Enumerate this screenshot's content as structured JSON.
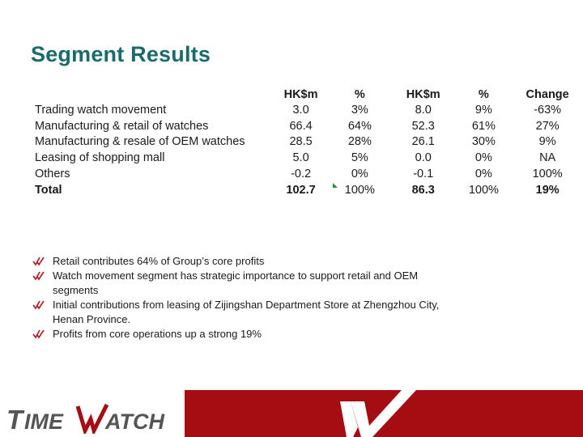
{
  "title": "Segment Results",
  "table": {
    "headers": [
      "",
      "HK$m",
      "%",
      "HK$m",
      "%",
      "Change"
    ],
    "rows": [
      {
        "label": "Trading watch movement",
        "v1": "3.0",
        "p1": "3%",
        "v2": "8.0",
        "p2": "9%",
        "change": "-63%"
      },
      {
        "label": "Manufacturing & retail of watches",
        "v1": "66.4",
        "p1": "64%",
        "v2": "52.3",
        "p2": "61%",
        "change": "27%"
      },
      {
        "label": "Manufacturing & resale of OEM watches",
        "v1": "28.5",
        "p1": "28%",
        "v2": "26.1",
        "p2": "30%",
        "change": "9%"
      },
      {
        "label": "Leasing of shopping mall",
        "v1": "5.0",
        "p1": "5%",
        "v2": "0.0",
        "p2": "0%",
        "change": "NA"
      },
      {
        "label": "Others",
        "v1": "-0.2",
        "p1": "0%",
        "v2": "-0.1",
        "p2": "0%",
        "change": "100%"
      }
    ],
    "total": {
      "label": "Total",
      "v1": "102.7",
      "p1": "100%",
      "v2": "86.3",
      "p2": "100%",
      "change": "19%"
    }
  },
  "bullets": [
    "Retail contributes 64% of Group’s core profits",
    "Watch movement segment has strategic importance to support retail and OEM segments",
    "Initial contributions from leasing of Zijingshan Department Store at Zhengzhou City, Henan Province.",
    "Profits from core operations up a strong 19%"
  ],
  "logo": {
    "text": "TIMEWATCH"
  },
  "colors": {
    "title": "#1a6b6b",
    "brand_red": "#a50d12",
    "logo_gray": "#555555",
    "bullet_red": "#b0161c"
  }
}
